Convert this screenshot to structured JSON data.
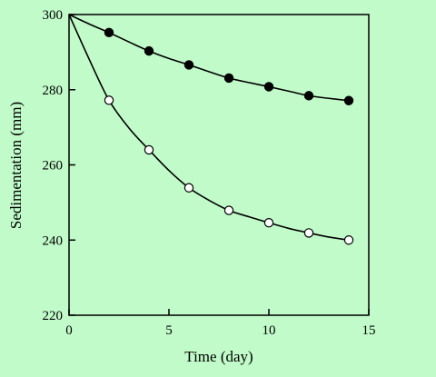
{
  "colors": {
    "background": "#c1fbc9",
    "axis": "#000000",
    "filled_marker": "#000000",
    "open_marker_fill": "#ffffff"
  },
  "chart_data": {
    "type": "scatter",
    "title": "",
    "xlabel": "Time (day)",
    "ylabel": "Sedimentation (mm)",
    "xlim": [
      0,
      15
    ],
    "ylim": [
      220,
      300
    ],
    "xticks": [
      0,
      5,
      10,
      15
    ],
    "yticks": [
      220,
      240,
      260,
      280,
      300
    ],
    "x_tick_labels": [
      "0",
      "5",
      "10",
      "15"
    ],
    "y_tick_labels": [
      "220",
      "240",
      "260",
      "280",
      "300"
    ],
    "grid": false,
    "legend": "none",
    "series": [
      {
        "marker": "filled-circle",
        "x": [
          2,
          4,
          6,
          8,
          10,
          12,
          14
        ],
        "y": [
          295.2,
          290.3,
          286.6,
          283.1,
          280.8,
          278.4,
          277.1
        ],
        "fit_curve": {
          "x": [
            0,
            1,
            2,
            3,
            4,
            5,
            6,
            7,
            8,
            9,
            10,
            11,
            12,
            13,
            14
          ],
          "y": [
            300,
            297.5,
            295.2,
            292.7,
            290.3,
            288.3,
            286.6,
            284.8,
            283.1,
            281.9,
            280.8,
            279.6,
            278.4,
            277.7,
            277.1
          ]
        }
      },
      {
        "marker": "open-circle",
        "x": [
          2,
          4,
          6,
          8,
          10,
          12,
          14
        ],
        "y": [
          277.2,
          264.0,
          253.9,
          247.9,
          244.6,
          241.9,
          240.0
        ],
        "fit_curve": {
          "x": [
            0,
            1,
            2,
            3,
            4,
            5,
            6,
            7,
            8,
            9,
            10,
            11,
            12,
            13,
            14
          ],
          "y": [
            300,
            288.2,
            277.2,
            269.8,
            264.0,
            258.5,
            253.9,
            250.6,
            247.9,
            246.2,
            244.6,
            243.1,
            241.9,
            240.8,
            240.0
          ]
        }
      }
    ]
  }
}
